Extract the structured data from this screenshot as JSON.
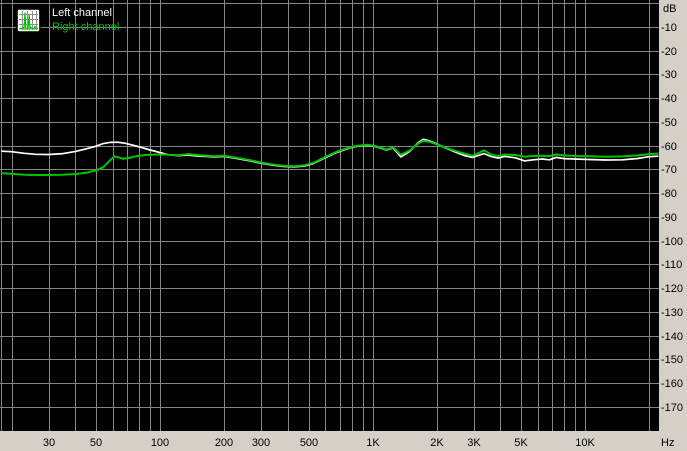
{
  "window": {
    "background": "#d4d0c8"
  },
  "legend": {
    "items": [
      {
        "label": "Left channel",
        "color": "#ffffff"
      },
      {
        "label": "Right channel",
        "color": "#00c400"
      }
    ]
  },
  "axes": {
    "y_unit": "dB",
    "x_unit": "Hz",
    "tick_color": "#000000",
    "y_ticks": [
      {
        "db": -10,
        "label": "-10"
      },
      {
        "db": -20,
        "label": "-20"
      },
      {
        "db": -30,
        "label": "-30"
      },
      {
        "db": -40,
        "label": "-40"
      },
      {
        "db": -50,
        "label": "-50"
      },
      {
        "db": -60,
        "label": "-60"
      },
      {
        "db": -70,
        "label": "-70"
      },
      {
        "db": -80,
        "label": "-80"
      },
      {
        "db": -90,
        "label": "-90"
      },
      {
        "db": -100,
        "label": "-100"
      },
      {
        "db": -110,
        "label": "-110"
      },
      {
        "db": -120,
        "label": "-120"
      },
      {
        "db": -130,
        "label": "-130"
      },
      {
        "db": -140,
        "label": "-140"
      },
      {
        "db": -150,
        "label": "-150"
      },
      {
        "db": -160,
        "label": "-160"
      },
      {
        "db": -170,
        "label": "-170"
      }
    ],
    "x_ticks": [
      {
        "hz": 30,
        "label": "30"
      },
      {
        "hz": 50,
        "label": "50"
      },
      {
        "hz": 100,
        "label": "100"
      },
      {
        "hz": 200,
        "label": "200"
      },
      {
        "hz": 300,
        "label": "300"
      },
      {
        "hz": 500,
        "label": "500"
      },
      {
        "hz": 1000,
        "label": "1K"
      },
      {
        "hz": 2000,
        "label": "2K"
      },
      {
        "hz": 3000,
        "label": "3K"
      },
      {
        "hz": 5000,
        "label": "5K"
      },
      {
        "hz": 10000,
        "label": "10K"
      }
    ]
  },
  "chart_data": {
    "type": "line",
    "x_scale": "log",
    "x_range_hz": [
      20,
      20000
    ],
    "y_range_db": [
      -180,
      0
    ],
    "plot_background": "#000000",
    "grid": {
      "color": "#868686",
      "y_step_db": 10,
      "x_lines_hz": [
        20,
        30,
        40,
        50,
        60,
        70,
        80,
        90,
        100,
        200,
        300,
        400,
        500,
        600,
        700,
        800,
        900,
        1000,
        2000,
        3000,
        4000,
        5000,
        6000,
        7000,
        8000,
        9000,
        10000,
        20000
      ]
    },
    "series": [
      {
        "name": "Left channel",
        "color": "#ffffff",
        "points": [
          [
            18,
            -62.4
          ],
          [
            20,
            -62.6
          ],
          [
            23,
            -63.3
          ],
          [
            26,
            -63.7
          ],
          [
            30,
            -63.8
          ],
          [
            35,
            -63.4
          ],
          [
            40,
            -62.5
          ],
          [
            45,
            -61.4
          ],
          [
            50,
            -60.3
          ],
          [
            54,
            -59.2
          ],
          [
            58,
            -58.7
          ],
          [
            63,
            -58.6
          ],
          [
            68,
            -59.0
          ],
          [
            75,
            -59.9
          ],
          [
            82,
            -60.9
          ],
          [
            90,
            -61.9
          ],
          [
            100,
            -63.0
          ],
          [
            110,
            -63.9
          ],
          [
            122,
            -64.3
          ],
          [
            135,
            -64.0
          ],
          [
            150,
            -64.4
          ],
          [
            165,
            -64.6
          ],
          [
            180,
            -64.8
          ],
          [
            200,
            -64.6
          ],
          [
            220,
            -65.2
          ],
          [
            245,
            -65.9
          ],
          [
            270,
            -66.6
          ],
          [
            300,
            -67.5
          ],
          [
            340,
            -68.3
          ],
          [
            380,
            -68.8
          ],
          [
            430,
            -69.0
          ],
          [
            480,
            -68.6
          ],
          [
            530,
            -67.5
          ],
          [
            600,
            -65.1
          ],
          [
            680,
            -62.9
          ],
          [
            780,
            -61.0
          ],
          [
            850,
            -60.3
          ],
          [
            950,
            -59.9
          ],
          [
            1050,
            -60.6
          ],
          [
            1160,
            -61.9
          ],
          [
            1250,
            -61.0
          ],
          [
            1360,
            -64.8
          ],
          [
            1500,
            -62.4
          ],
          [
            1620,
            -59.2
          ],
          [
            1730,
            -57.4
          ],
          [
            1850,
            -58.0
          ],
          [
            2000,
            -59.3
          ],
          [
            2200,
            -61.0
          ],
          [
            2400,
            -62.4
          ],
          [
            2700,
            -64.2
          ],
          [
            2950,
            -65.0
          ],
          [
            3100,
            -64.4
          ],
          [
            3350,
            -63.4
          ],
          [
            3600,
            -64.6
          ],
          [
            3900,
            -65.3
          ],
          [
            4200,
            -64.6
          ],
          [
            4700,
            -65.2
          ],
          [
            5200,
            -66.5
          ],
          [
            5700,
            -66.0
          ],
          [
            6300,
            -65.7
          ],
          [
            6800,
            -66.0
          ],
          [
            7300,
            -65.0
          ],
          [
            8000,
            -65.5
          ],
          [
            9000,
            -65.7
          ],
          [
            10500,
            -65.9
          ],
          [
            12500,
            -66.1
          ],
          [
            15000,
            -66.0
          ],
          [
            17500,
            -65.5
          ],
          [
            20000,
            -64.7
          ],
          [
            22000,
            -64.5
          ]
        ]
      },
      {
        "name": "Right channel",
        "color": "#00c400",
        "points": [
          [
            18,
            -71.7
          ],
          [
            20,
            -71.9
          ],
          [
            23,
            -72.3
          ],
          [
            26,
            -72.4
          ],
          [
            30,
            -72.4
          ],
          [
            35,
            -72.3
          ],
          [
            40,
            -72.0
          ],
          [
            45,
            -71.5
          ],
          [
            50,
            -70.5
          ],
          [
            54,
            -69.2
          ],
          [
            58,
            -66.3
          ],
          [
            61,
            -64.6
          ],
          [
            64,
            -65.0
          ],
          [
            67,
            -65.6
          ],
          [
            72,
            -65.2
          ],
          [
            78,
            -64.4
          ],
          [
            85,
            -64.0
          ],
          [
            95,
            -63.8
          ],
          [
            105,
            -63.8
          ],
          [
            110,
            -63.9
          ],
          [
            122,
            -64.1
          ],
          [
            135,
            -63.6
          ],
          [
            150,
            -64.0
          ],
          [
            165,
            -64.3
          ],
          [
            180,
            -64.5
          ],
          [
            200,
            -64.3
          ],
          [
            220,
            -64.9
          ],
          [
            245,
            -65.6
          ],
          [
            270,
            -66.3
          ],
          [
            300,
            -67.2
          ],
          [
            340,
            -68.0
          ],
          [
            380,
            -68.5
          ],
          [
            430,
            -68.7
          ],
          [
            480,
            -68.3
          ],
          [
            530,
            -67.2
          ],
          [
            600,
            -64.8
          ],
          [
            680,
            -62.6
          ],
          [
            780,
            -60.8
          ],
          [
            850,
            -60.1
          ],
          [
            950,
            -59.7
          ],
          [
            1050,
            -60.4
          ],
          [
            1160,
            -61.7
          ],
          [
            1250,
            -60.8
          ],
          [
            1360,
            -63.9
          ],
          [
            1500,
            -62.0
          ],
          [
            1620,
            -59.5
          ],
          [
            1730,
            -58.0
          ],
          [
            1850,
            -58.4
          ],
          [
            2000,
            -59.5
          ],
          [
            2200,
            -60.9
          ],
          [
            2400,
            -62.0
          ],
          [
            2700,
            -63.4
          ],
          [
            2950,
            -64.3
          ],
          [
            3100,
            -63.5
          ],
          [
            3350,
            -62.0
          ],
          [
            3600,
            -63.7
          ],
          [
            3900,
            -64.5
          ],
          [
            4200,
            -63.8
          ],
          [
            4700,
            -64.0
          ],
          [
            5200,
            -64.7
          ],
          [
            5700,
            -64.4
          ],
          [
            6300,
            -64.3
          ],
          [
            6800,
            -64.5
          ],
          [
            7300,
            -63.8
          ],
          [
            8000,
            -64.2
          ],
          [
            9000,
            -64.4
          ],
          [
            10500,
            -64.5
          ],
          [
            12500,
            -64.7
          ],
          [
            15000,
            -64.6
          ],
          [
            17500,
            -64.2
          ],
          [
            20000,
            -63.6
          ],
          [
            22000,
            -63.4
          ]
        ]
      }
    ],
    "legend_position": "top-left",
    "grid_on": true
  }
}
